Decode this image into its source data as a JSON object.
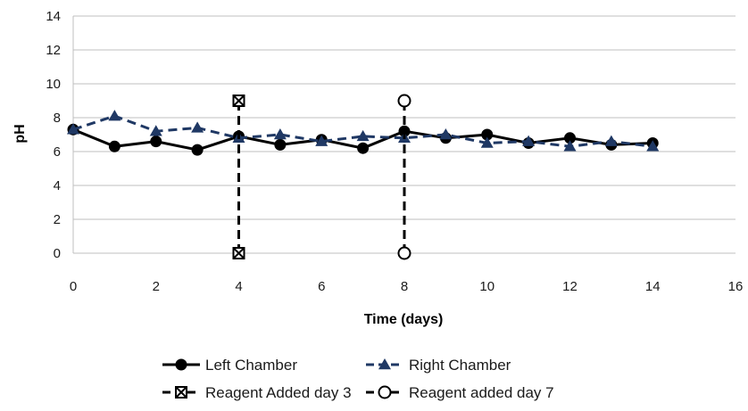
{
  "chart_data": {
    "type": "line",
    "title": "",
    "xlabel": "Time (days)",
    "ylabel": "pH",
    "xlim": [
      0,
      16
    ],
    "ylim": [
      0,
      14
    ],
    "xticks": [
      0,
      2,
      4,
      6,
      8,
      10,
      12,
      14,
      16
    ],
    "yticks": [
      0,
      2,
      4,
      6,
      8,
      10,
      12,
      14
    ],
    "grid": "horizontal",
    "legend_position": "bottom",
    "series": [
      {
        "name": "Left Chamber",
        "color": "#000000",
        "marker": "circle-filled",
        "line_style": "solid",
        "points": [
          [
            0,
            7.3
          ],
          [
            1,
            6.3
          ],
          [
            2,
            6.6
          ],
          [
            3,
            6.1
          ],
          [
            4,
            6.9
          ],
          [
            5,
            6.4
          ],
          [
            6,
            6.7
          ],
          [
            7,
            6.2
          ],
          [
            8,
            7.2
          ],
          [
            9,
            6.8
          ],
          [
            10,
            7.0
          ],
          [
            11,
            6.5
          ],
          [
            12,
            6.8
          ],
          [
            13,
            6.4
          ],
          [
            14,
            6.5
          ]
        ]
      },
      {
        "name": "Right Chamber",
        "color": "#1f3864",
        "marker": "triangle-filled",
        "line_style": "dashed",
        "points": [
          [
            0,
            7.3
          ],
          [
            1,
            8.1
          ],
          [
            2,
            7.2
          ],
          [
            3,
            7.4
          ],
          [
            4,
            6.8
          ],
          [
            5,
            7.0
          ],
          [
            6,
            6.6
          ],
          [
            7,
            6.9
          ],
          [
            8,
            6.8
          ],
          [
            9,
            7.0
          ],
          [
            10,
            6.5
          ],
          [
            11,
            6.6
          ],
          [
            12,
            6.3
          ],
          [
            13,
            6.6
          ],
          [
            14,
            6.3
          ]
        ]
      },
      {
        "name": "Reagent Added day 3",
        "color": "#000000",
        "marker": "square-x",
        "line_style": "dashed",
        "points": [
          [
            4,
            0
          ],
          [
            4,
            9
          ]
        ]
      },
      {
        "name": "Reagent added day 7",
        "color": "#000000",
        "marker": "circle-open",
        "line_style": "dashed",
        "points": [
          [
            8,
            0
          ],
          [
            8,
            9
          ]
        ]
      }
    ]
  }
}
